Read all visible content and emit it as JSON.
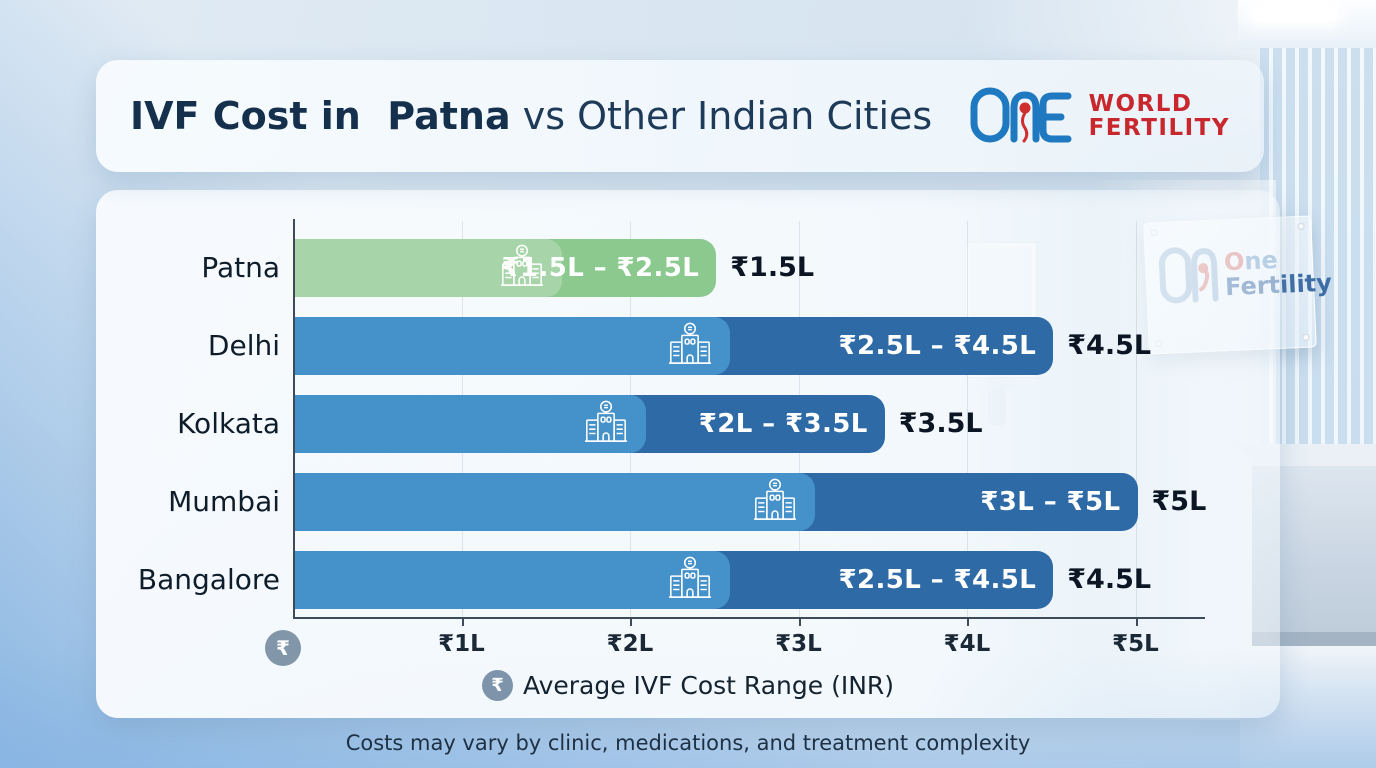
{
  "header": {
    "title_emphasis": "IVF Cost in  Patna",
    "title_rest": " vs Other Indian Cities",
    "logo": {
      "word1": "WORLD",
      "word2": "FERTILITY",
      "brand_blue": "#1e79c0",
      "brand_red": "#ce2f2e"
    }
  },
  "chart_data": {
    "type": "bar",
    "orientation": "horizontal",
    "title": "IVF Cost in Patna vs Other Indian Cities",
    "xlabel": "Average IVF Cost Range (INR)",
    "xlim": [
      0,
      5.4
    ],
    "unit": "lakh INR",
    "grid": true,
    "x_ticks": [
      "₹1L",
      "₹2L",
      "₹3L",
      "₹4L",
      "₹5L"
    ],
    "x_tick_values": [
      1,
      2,
      3,
      4,
      5
    ],
    "currency_symbol": "₹",
    "bars": [
      {
        "city": "Patna",
        "low": 1.5,
        "high": 2.5,
        "range_label": "₹1.5L – ₹2.5L",
        "value_label": "₹1.5L",
        "highlight": true
      },
      {
        "city": "Delhi",
        "low": 2.5,
        "high": 4.5,
        "range_label": "₹2.5L – ₹4.5L",
        "value_label": "₹4.5L",
        "highlight": false
      },
      {
        "city": "Kolkata",
        "low": 2.0,
        "high": 3.5,
        "range_label": "₹2L – ₹3.5L",
        "value_label": "₹3.5L",
        "highlight": false
      },
      {
        "city": "Mumbai",
        "low": 3.0,
        "high": 5.0,
        "range_label": "₹3L – ₹5L",
        "value_label": "₹5L",
        "highlight": false
      },
      {
        "city": "Bangalore",
        "low": 2.5,
        "high": 4.5,
        "range_label": "₹2.5L – ₹4.5L",
        "value_label": "₹4.5L",
        "highlight": false
      }
    ],
    "colors": {
      "highlight_light": "#a7d5a9",
      "highlight_dark": "#8bc98f",
      "default_light": "#4591ca",
      "default_dark": "#2e6ba6"
    }
  },
  "axis": {
    "origin_symbol": "₹",
    "caption_symbol": "₹"
  },
  "footer": {
    "note": "Costs may vary by clinic, medications, and treatment complexity"
  },
  "wall_sign": {
    "line1_o": "O",
    "line1_rest": "ne",
    "line2": "Fertility"
  }
}
